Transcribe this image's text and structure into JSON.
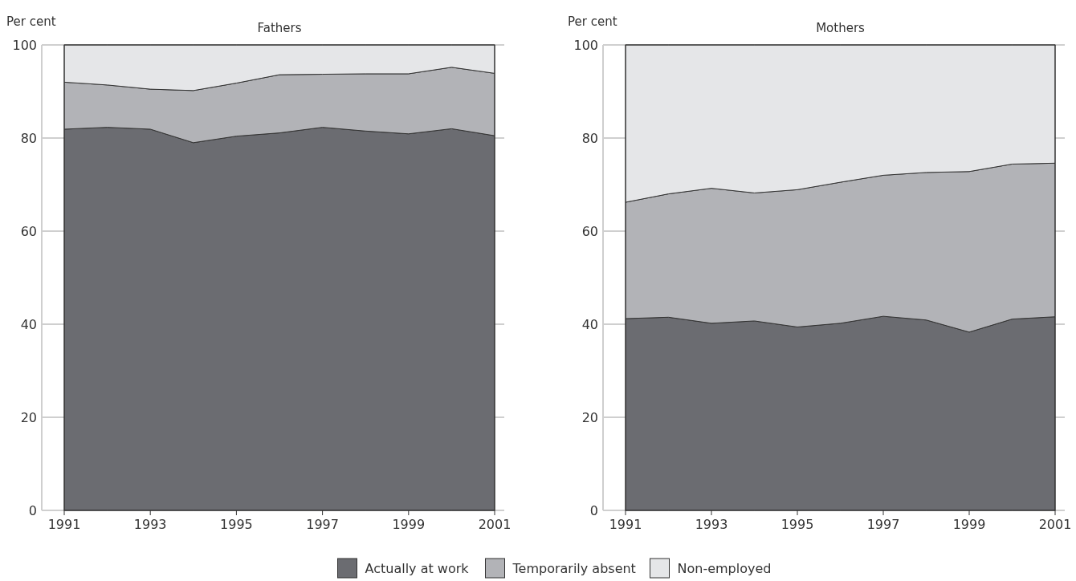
{
  "chart_data": [
    {
      "type": "area",
      "title": "Fathers",
      "ylabel": "Per cent",
      "stacked": true,
      "x": [
        1991,
        1992,
        1993,
        1994,
        1995,
        1996,
        1997,
        1998,
        1999,
        2000,
        2001
      ],
      "xlim": [
        1991,
        2001
      ],
      "xticks": [
        1991,
        1993,
        1995,
        1997,
        1999,
        2001
      ],
      "ylim": [
        0,
        100
      ],
      "yticks": [
        0,
        20,
        40,
        60,
        80,
        100
      ],
      "grid": "y",
      "legend": "bottom",
      "series": [
        {
          "name": "Actually at work",
          "color": "#6b6c71",
          "values": [
            81.9,
            82.3,
            81.9,
            79.0,
            80.4,
            81.1,
            82.3,
            81.5,
            80.9,
            82.0,
            80.5
          ]
        },
        {
          "name": "Temporarily absent",
          "color": "#b2b3b7",
          "values": [
            10.1,
            9.1,
            8.6,
            11.2,
            11.4,
            12.5,
            11.4,
            12.3,
            12.9,
            13.2,
            13.4
          ]
        },
        {
          "name": "Non-employed",
          "color": "#e5e6e8",
          "values": [
            8.0,
            8.6,
            9.5,
            9.8,
            8.2,
            6.4,
            6.3,
            6.2,
            6.2,
            4.8,
            6.1
          ]
        }
      ]
    },
    {
      "type": "area",
      "title": "Mothers",
      "ylabel": "Per cent",
      "stacked": true,
      "x": [
        1991,
        1992,
        1993,
        1994,
        1995,
        1996,
        1997,
        1998,
        1999,
        2000,
        2001
      ],
      "xlim": [
        1991,
        2001
      ],
      "xticks": [
        1991,
        1993,
        1995,
        1997,
        1999,
        2001
      ],
      "ylim": [
        0,
        100
      ],
      "yticks": [
        0,
        20,
        40,
        60,
        80,
        100
      ],
      "grid": "y",
      "series": [
        {
          "color": "#6b6c71",
          "values": [
            41.2,
            41.5,
            40.2,
            40.7,
            39.4,
            40.2,
            41.7,
            40.9,
            38.3,
            41.1,
            41.6
          ]
        },
        {
          "color": "#b2b3b7",
          "values": [
            25.0,
            26.5,
            29.0,
            27.5,
            29.5,
            30.3,
            30.3,
            31.7,
            34.5,
            33.3,
            33.0
          ]
        },
        {
          "color": "#e5e6e8",
          "values": [
            33.8,
            32.0,
            30.8,
            31.8,
            31.1,
            29.5,
            28.0,
            27.4,
            27.2,
            25.6,
            25.4
          ]
        }
      ]
    }
  ]
}
